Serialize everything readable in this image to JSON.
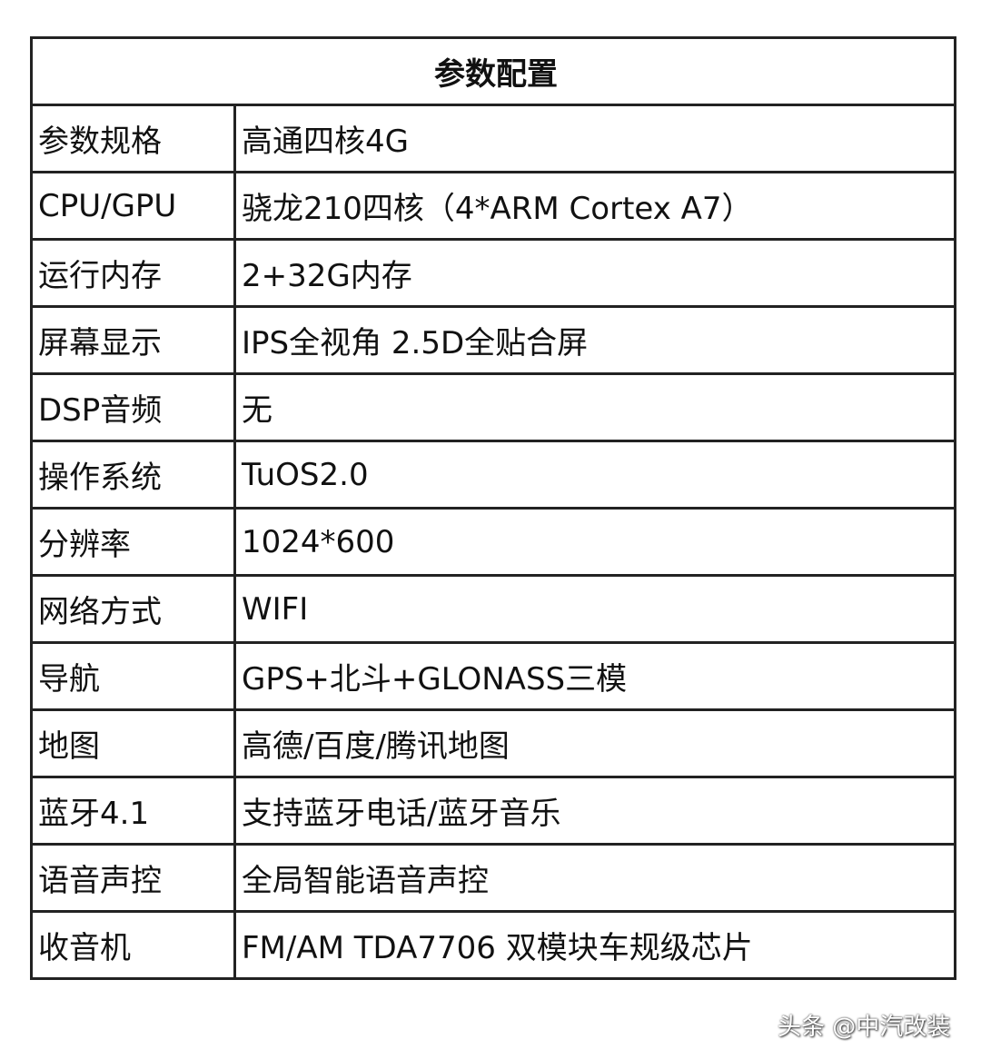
{
  "table": {
    "title": "参数配置",
    "rows": [
      [
        "参数规格",
        "高通四核4G"
      ],
      [
        "CPU/GPU",
        "骁龙210四核（4*ARM Cortex A7）"
      ],
      [
        "运行内存",
        "2+32G内存"
      ],
      [
        "屏幕显示",
        "IPS全视角 2.5D全贴合屏"
      ],
      [
        "DSP音频",
        "无"
      ],
      [
        "操作系统",
        "TuOS2.0"
      ],
      [
        "分辨率",
        "1024*600"
      ],
      [
        "网络方式",
        "WIFI"
      ],
      [
        "导航",
        "GPS+北斗+GLONASS三模"
      ],
      [
        "地图",
        "高德/百度/腾讯地图"
      ],
      [
        "蓝牙4.1",
        "支持蓝牙电话/蓝牙音乐"
      ],
      [
        "语音声控",
        "全局智能语音声控"
      ],
      [
        "收音机",
        "FM/AM TDA7706 双模块车规级芯片"
      ]
    ]
  },
  "watermark": "头条 @中汽改装"
}
